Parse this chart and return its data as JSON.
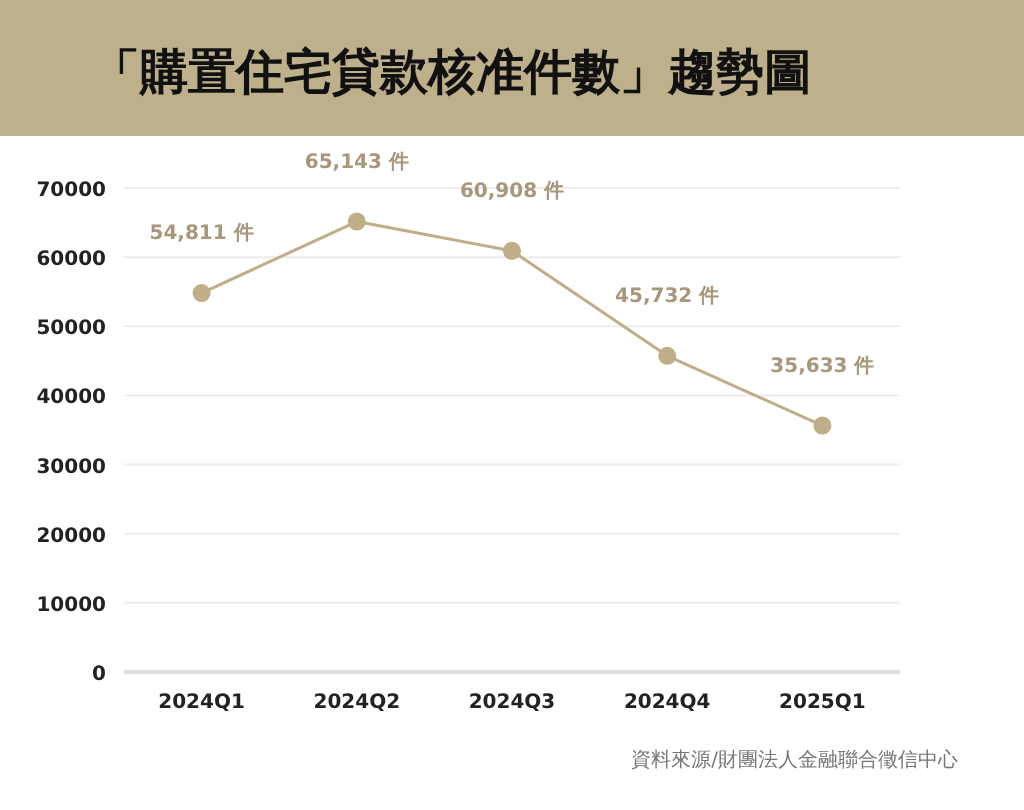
{
  "chart_data": {
    "type": "line",
    "title": "「購置住宅貸款核准件數」趨勢圖",
    "categories": [
      "2024Q1",
      "2024Q2",
      "2024Q3",
      "2024Q4",
      "2025Q1"
    ],
    "series": [
      {
        "color": "#bfae88",
        "values": [
          54811,
          65143,
          60908,
          45732,
          35633
        ],
        "value_labels": [
          "54,811 件",
          "65,143 件",
          "60,908 件",
          "45,732 件",
          "35,633 件"
        ]
      }
    ],
    "ylim": [
      0,
      70000
    ],
    "yticks": [
      0,
      10000,
      20000,
      30000,
      40000,
      50000,
      60000,
      70000
    ],
    "grid": "y",
    "marker": "circle",
    "line_style": "solid",
    "annotations": [
      "資料來源/財團法人金融聯合徵信中心"
    ]
  }
}
